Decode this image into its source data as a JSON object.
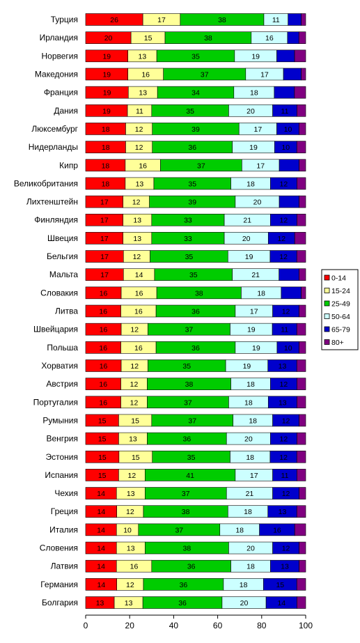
{
  "chart_data": {
    "type": "bar",
    "orientation": "horizontal",
    "stacked": true,
    "normalized": true,
    "title": "",
    "xlabel": "",
    "ylabel": "",
    "xlim": [
      0,
      100
    ],
    "x_ticks": [
      0,
      20,
      40,
      60,
      80,
      100
    ],
    "grid": false,
    "legend_position": "right",
    "categories": [
      "Турция",
      "Ирландия",
      "Норвегия",
      "Македония",
      "Франция",
      "Дания",
      "Люксембург",
      "Нидерланды",
      "Кипр",
      "Великобритания",
      "Лихтенштейн",
      "Финляндия",
      "Швеция",
      "Бельгия",
      "Мальта",
      "Словакия",
      "Литва",
      "Швейцария",
      "Польша",
      "Хорватия",
      "Австрия",
      "Португалия",
      "Румыния",
      "Венгрия",
      "Эстония",
      "Испания",
      "Чехия",
      "Греция",
      "Италия",
      "Словения",
      "Латвия",
      "Германия",
      "Болгария"
    ],
    "series": [
      {
        "name": "0-14",
        "color": "#ff0000",
        "values": [
          26,
          20,
          19,
          19,
          19,
          19,
          18,
          18,
          18,
          18,
          17,
          17,
          17,
          17,
          17,
          16,
          16,
          16,
          16,
          16,
          16,
          16,
          15,
          15,
          15,
          15,
          14,
          14,
          14,
          14,
          14,
          14,
          13
        ]
      },
      {
        "name": "15-24",
        "color": "#ffff99",
        "values": [
          17,
          15,
          13,
          16,
          13,
          11,
          12,
          12,
          16,
          13,
          12,
          13,
          13,
          12,
          14,
          16,
          16,
          12,
          16,
          12,
          12,
          12,
          15,
          13,
          15,
          12,
          13,
          12,
          10,
          13,
          16,
          12,
          13
        ]
      },
      {
        "name": "25-49",
        "color": "#00cc00",
        "values": [
          38,
          38,
          35,
          37,
          34,
          35,
          39,
          36,
          37,
          35,
          39,
          33,
          33,
          35,
          35,
          38,
          36,
          37,
          36,
          35,
          38,
          37,
          37,
          36,
          35,
          41,
          37,
          38,
          37,
          38,
          36,
          36,
          36
        ]
      },
      {
        "name": "50-64",
        "color": "#ccffff",
        "values": [
          11,
          16,
          19,
          17,
          18,
          20,
          17,
          19,
          17,
          18,
          20,
          21,
          20,
          19,
          21,
          18,
          17,
          19,
          19,
          19,
          18,
          18,
          18,
          20,
          18,
          17,
          21,
          18,
          18,
          20,
          18,
          18,
          20
        ]
      },
      {
        "name": "65-79",
        "color": "#0000cc",
        "values": [
          6,
          5,
          8,
          8,
          9,
          11,
          10,
          10,
          9,
          12,
          9,
          12,
          12,
          12,
          9,
          9,
          12,
          11,
          10,
          13,
          12,
          13,
          12,
          12,
          12,
          11,
          12,
          13,
          16,
          12,
          13,
          15,
          14
        ]
      },
      {
        "name": "80+",
        "color": "#800080",
        "values": [
          2,
          3,
          5,
          2,
          5,
          4,
          3,
          4,
          3,
          4,
          3,
          4,
          5,
          4,
          3,
          2,
          3,
          4,
          3,
          4,
          4,
          4,
          3,
          4,
          4,
          4,
          3,
          4,
          5,
          3,
          3,
          4,
          4
        ]
      }
    ]
  }
}
